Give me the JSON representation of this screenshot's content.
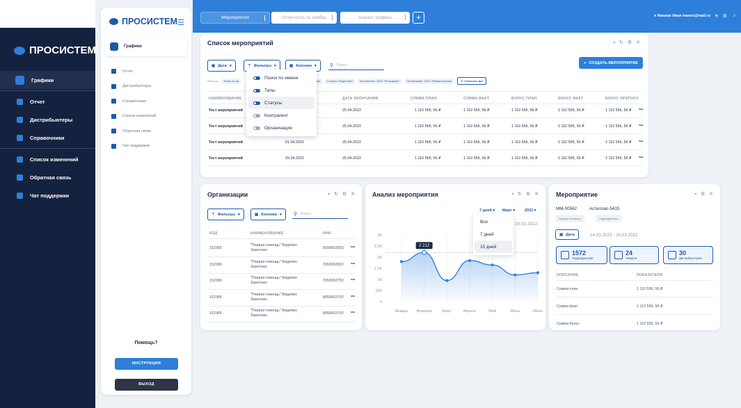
{
  "brand": "ПРОСИСТЕМ",
  "back_sidebar": {
    "items": [
      {
        "label": "Графики",
        "active": true
      },
      {
        "label": "Отчет"
      },
      {
        "label": "Дистрибьютеры"
      },
      {
        "label": "Справочники"
      },
      {
        "label": "Список изменений"
      },
      {
        "label": "Обратная связь"
      },
      {
        "label": "Чат поддержки"
      }
    ]
  },
  "sidebar": {
    "active_item": "Графики",
    "items": [
      "Отчет",
      "Дистрибьютеры",
      "Справочники",
      "Список изменений",
      "Обратная связь",
      "Чат поддержки"
    ],
    "help": "Помощь?",
    "instruction_button": "ИНСТРУКЦИЯ",
    "exit_button": "ВЫХОД"
  },
  "topbar": {
    "tabs": [
      "Мероприятия",
      "Отчетность за ноябрь",
      "Анализ графика"
    ],
    "user": "Иванов Иван  ivanov@mail.ru"
  },
  "events_card": {
    "title": "Список мероприятий",
    "date_button": "Дата",
    "filters_button": "Фильтры",
    "columns_button": "Колонки",
    "search_placeholder": "Поиск",
    "create_button": "СОЗДАТЬ МЕРОПРИЯТИЕ",
    "active_filters_label": "Фильтры:",
    "active_filters": [
      "Поиск по им",
      "по группе",
      "Статусы: Подготовка",
      "Контрагенты: ООО \"Петрофарм\"",
      "Организация: ООО \"Первая помощь\""
    ],
    "clear_all": "Очистить всё",
    "columns": [
      "НАИМЕНОВАНИЕ",
      "ДАТА ОКОНЧАНИЯ",
      "СУММА ПЛАН.",
      "СУММА ФАКТ",
      "БОНУС ПЛАН",
      "БОНУС ФАКТ",
      "БОНУС ПРОГНОЗ"
    ],
    "rows": [
      {
        "name": "Тест мероприятий",
        "start": "",
        "end": "25.04.2022",
        "plan": "1 110 556, 56 ₽",
        "fact": "1 110 556, 56 ₽",
        "bonus_plan": "1 110 556, 56 ₽",
        "bonus_fact": "1 110 556, 56 ₽",
        "bonus_forecast": "1 110 556, 56 ₽"
      },
      {
        "name": "Тест мероприятий",
        "start": "",
        "end": "25.04.2022",
        "plan": "1 110 556, 56 ₽",
        "fact": "1 110 556, 56 ₽",
        "bonus_plan": "1 110 556, 56 ₽",
        "bonus_fact": "1 110 556, 56 ₽",
        "bonus_forecast": "1 110 556, 56 ₽"
      },
      {
        "name": "Тест мероприятий",
        "start": "01.04.2022",
        "end": "25.04.2022",
        "plan": "1 110 556, 56 ₽",
        "fact": "1 110 556, 56 ₽",
        "bonus_plan": "1 110 556, 56 ₽",
        "bonus_fact": "1 110 556, 56 ₽",
        "bonus_forecast": "1 110 556, 56 ₽"
      },
      {
        "name": "Тест мероприятий",
        "start": "25.04.2022",
        "end": "25.04.2022",
        "plan": "1 110 556, 56 ₽",
        "fact": "1 110 556, 56 ₽",
        "bonus_plan": "1 110 556, 56 ₽",
        "bonus_fact": "1 110 556, 56 ₽",
        "bonus_forecast": "1 110 556, 56 ₽"
      }
    ]
  },
  "filter_dropdown": {
    "items": [
      {
        "label": "Поиск по имени",
        "on": true
      },
      {
        "label": "Типы",
        "on": true
      },
      {
        "label": "Статусы",
        "on": true,
        "highlighted": true
      },
      {
        "label": "Контрагент",
        "on": false
      },
      {
        "label": "Организация",
        "on": false
      }
    ]
  },
  "orgs_card": {
    "title": "Организации",
    "filters_button": "Фильтры",
    "columns_button": "Колонки",
    "search_placeholder": "Поиск",
    "columns": [
      "КОД",
      "НАИМЕНОВАНИЕ",
      "ИНН"
    ],
    "rows": [
      {
        "code": "152365",
        "name": "\"Первая помощь\" Видлево Заречная",
        "inn": "5656652652"
      },
      {
        "code": "152365",
        "name": "\"Первая помощь\" Видлево Заречная",
        "inn": "7656652652"
      },
      {
        "code": "152365",
        "name": "\"Первая помощь\" Видлево Заречная",
        "inn": "7656652752"
      },
      {
        "code": "152365",
        "name": "\"Первая помощь\" Видлево Заречная",
        "inn": "8656652752"
      },
      {
        "code": "152365",
        "name": "\"Первая помощь\" Видлево Заречная",
        "inn": "8956652752"
      }
    ]
  },
  "analysis_card": {
    "title": "Анализ мероприятия",
    "period_select": "7 дней",
    "month_select": "Март",
    "year_select": "2022",
    "date_hint": "20.03.2022",
    "period_options": [
      {
        "label": "Все"
      },
      {
        "label": "7 дней"
      },
      {
        "label": "15 дней",
        "highlighted": true
      }
    ]
  },
  "chart_data": {
    "type": "area",
    "categories": [
      "Январь",
      "Февраль",
      "Март",
      "Апрель",
      "Май",
      "Июнь",
      "Июль"
    ],
    "values": [
      1800,
      2212,
      950,
      1850,
      1650,
      1200,
      1300
    ],
    "yticks": [
      "3K",
      "2.5K",
      "2K",
      "1.5K",
      "1K",
      "500",
      "0"
    ],
    "ylim": [
      0,
      3000
    ],
    "highlight": {
      "category": "Февраль",
      "label": "2 212"
    },
    "grid": true,
    "color": "#2e7fd9"
  },
  "event_card": {
    "title": "Мероприятие",
    "code": "ММ-00562",
    "name": "Астеллас-5415",
    "tags": [
      "Закупки по пакету",
      "Подразделения"
    ],
    "date_button": "Дата",
    "date_range": "14.03.2022 - 20.03.2022",
    "stats": [
      {
        "value": "1572",
        "label": "Подразделения"
      },
      {
        "value": "24",
        "label": "Товаров"
      },
      {
        "value": "30",
        "label": "Дистрибьюторов"
      }
    ],
    "columns": [
      "ОПИСАНИЕ",
      "ПОКАЗАТЕЛИ"
    ],
    "rows": [
      {
        "desc": "Сумма план",
        "val": "1 110 556, 56 ₽"
      },
      {
        "desc": "Сумма факт",
        "val": "1 110 556, 56 ₽"
      },
      {
        "desc": "Сумма бонус",
        "val": "1 110 556, 56 ₽"
      }
    ]
  }
}
